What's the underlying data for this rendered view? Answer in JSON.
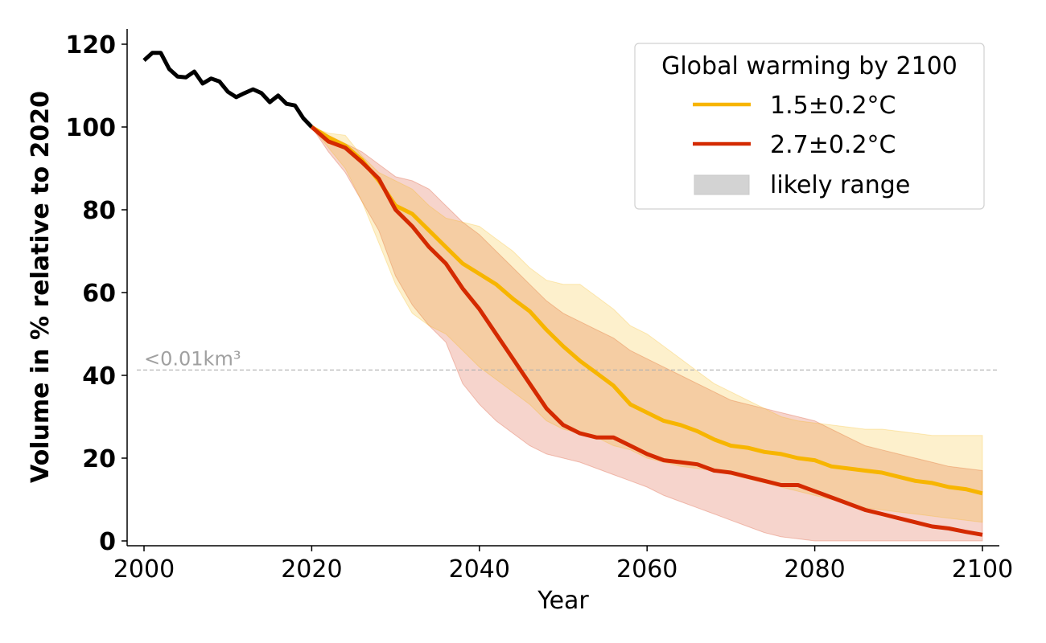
{
  "chart_data": {
    "type": "line",
    "title": "",
    "xlabel": "Year",
    "ylabel": "Volume in % relative to 2020",
    "xlim": [
      1999,
      2102
    ],
    "ylim": [
      -1,
      124
    ],
    "xticks": [
      2000,
      2020,
      2040,
      2060,
      2080,
      2100
    ],
    "yticks": [
      0,
      20,
      40,
      60,
      80,
      100,
      120
    ],
    "grid": false,
    "legend": {
      "title": "Global warming by 2100",
      "placement": "top-right",
      "entries": [
        {
          "label": "1.5±0.2°C",
          "kind": "line",
          "color": "#f7b500"
        },
        {
          "label": "2.7±0.2°C",
          "kind": "line",
          "color": "#d42a00"
        },
        {
          "label": "likely range",
          "kind": "patch",
          "color": "#d3d3d3"
        }
      ]
    },
    "annotation": {
      "text": "<0.01km³",
      "y": 41.3,
      "color": "#a0a0a0"
    },
    "series": [
      {
        "name": "observed",
        "color": "#000000",
        "x": [
          2000,
          2001,
          2002,
          2003,
          2004,
          2005,
          2006,
          2007,
          2008,
          2009,
          2010,
          2011,
          2012,
          2013,
          2014,
          2015,
          2016,
          2017,
          2018,
          2019,
          2020
        ],
        "values": [
          116.1,
          117.9,
          117.9,
          114.0,
          112.2,
          112.0,
          113.4,
          110.5,
          111.7,
          111.0,
          108.5,
          107.2,
          108.2,
          109.1,
          108.2,
          106.0,
          107.6,
          105.6,
          105.2,
          102.1,
          100.0
        ]
      },
      {
        "name": "1.5±0.2°C",
        "color": "#f7b500",
        "band_color": "#fde9b0",
        "x": [
          2020,
          2022,
          2024,
          2026,
          2028,
          2030,
          2032,
          2034,
          2036,
          2038,
          2040,
          2042,
          2044,
          2046,
          2048,
          2050,
          2052,
          2054,
          2056,
          2058,
          2060,
          2062,
          2064,
          2066,
          2068,
          2070,
          2072,
          2074,
          2076,
          2078,
          2080,
          2082,
          2084,
          2086,
          2088,
          2090,
          2092,
          2094,
          2096,
          2098,
          2100
        ],
        "values": [
          100,
          97.5,
          95.5,
          92,
          87,
          81,
          79,
          75,
          71,
          67,
          64.5,
          62,
          58.5,
          55.5,
          51,
          47,
          43.5,
          40.5,
          37.5,
          33,
          31,
          29,
          28,
          26.5,
          24.5,
          23,
          22.5,
          21.5,
          21,
          20,
          19.5,
          18,
          17.5,
          17,
          16.5,
          15.5,
          14.5,
          14,
          13,
          12.5,
          11.5
        ],
        "lower": [
          100,
          95,
          90,
          82,
          72,
          62,
          55,
          52,
          50,
          46,
          42,
          39,
          36,
          33,
          29,
          27,
          26,
          25,
          23,
          22,
          20,
          19,
          18,
          17.5,
          17,
          16,
          15,
          14,
          13,
          12,
          11,
          10,
          9,
          8,
          7.5,
          7,
          6.5,
          6,
          5.5,
          5,
          4.5
        ],
        "upper": [
          100,
          98.5,
          98,
          93,
          89,
          87,
          85,
          81,
          78,
          77,
          76,
          73,
          70,
          66,
          63,
          62,
          62,
          59,
          56,
          52,
          50,
          47,
          44,
          41,
          38,
          36,
          34,
          32,
          30,
          29,
          28.5,
          28,
          27.5,
          27,
          27,
          26.5,
          26,
          25.5,
          25.5,
          25.5,
          25.5
        ]
      },
      {
        "name": "2.7±0.2°C",
        "color": "#d42a00",
        "band_color": "#f3c9c2",
        "x": [
          2020,
          2022,
          2024,
          2026,
          2028,
          2030,
          2032,
          2034,
          2036,
          2038,
          2040,
          2042,
          2044,
          2046,
          2048,
          2050,
          2052,
          2054,
          2056,
          2058,
          2060,
          2062,
          2064,
          2066,
          2068,
          2070,
          2072,
          2074,
          2076,
          2078,
          2080,
          2082,
          2084,
          2086,
          2088,
          2090,
          2092,
          2094,
          2096,
          2098,
          2100
        ],
        "values": [
          100,
          96.5,
          95,
          91.5,
          87.5,
          80,
          76,
          71,
          67,
          61,
          56,
          50,
          44,
          38,
          32,
          28,
          26,
          25,
          25,
          23,
          21,
          19.5,
          19,
          18.5,
          17,
          16.5,
          15.5,
          14.5,
          13.5,
          13.5,
          12,
          10.5,
          9,
          7.5,
          6.5,
          5.5,
          4.5,
          3.5,
          3,
          2.2,
          1.5
        ],
        "lower": [
          100,
          94,
          89,
          82,
          75,
          64,
          57,
          52,
          48,
          38,
          33,
          29,
          26,
          23,
          21,
          20,
          19,
          17.5,
          16,
          14.5,
          13,
          11,
          9.5,
          8,
          6.5,
          5,
          3.5,
          2,
          1,
          0.5,
          0,
          0,
          0,
          0,
          0,
          0,
          0,
          0,
          0,
          0,
          0
        ],
        "upper": [
          100,
          98,
          96,
          94,
          91,
          88,
          87,
          85,
          81,
          77,
          74,
          70,
          66,
          62,
          58,
          55,
          53,
          51,
          49,
          46,
          44,
          42,
          40,
          38,
          36,
          34,
          33,
          32,
          31,
          30,
          29,
          27,
          25,
          23,
          22,
          21,
          20,
          19,
          18,
          17.5,
          17
        ]
      }
    ]
  }
}
